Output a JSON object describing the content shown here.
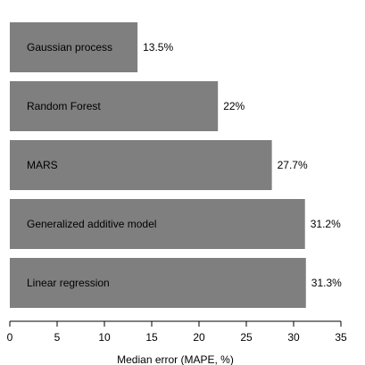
{
  "chart_data": {
    "type": "bar",
    "orientation": "horizontal",
    "categories": [
      "Gaussian process",
      "Random Forest",
      "MARS",
      "Generalized additive model",
      "Linear regression"
    ],
    "values": [
      13.5,
      22,
      27.7,
      31.2,
      31.3
    ],
    "value_labels": [
      "13.5%",
      "22%",
      "27.7%",
      "31.2%",
      "31.3%"
    ],
    "title": "",
    "xlabel": "Median error (MAPE, %)",
    "ylabel": "",
    "xlim": [
      0,
      35
    ],
    "xticks": [
      0,
      5,
      10,
      15,
      20,
      25,
      30,
      35
    ],
    "grid": false,
    "legend": "none",
    "bar_color": "#7f7f7f",
    "label_inside_bar": true
  }
}
